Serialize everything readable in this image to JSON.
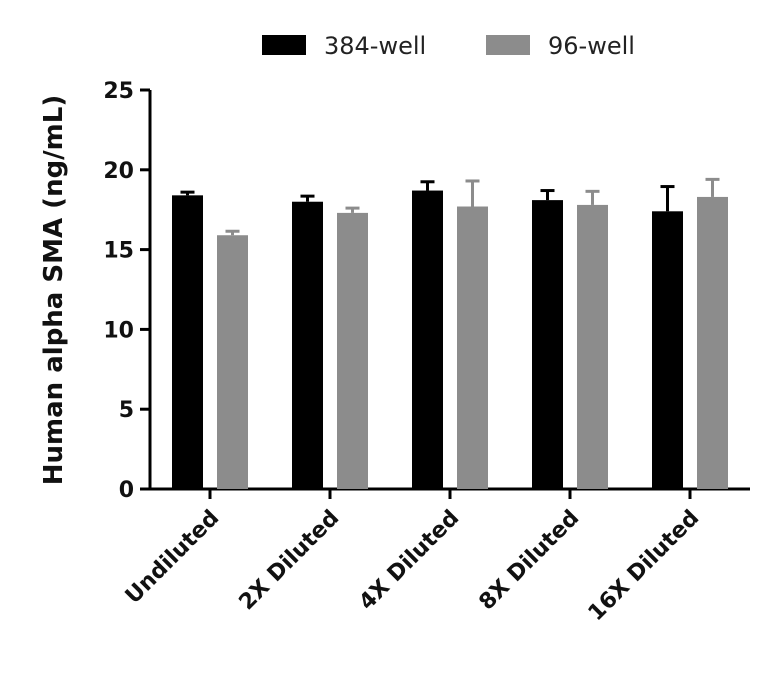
{
  "chart_data": {
    "type": "bar",
    "title": "",
    "xlabel": "",
    "ylabel": "Human alpha SMA (ng/mL)",
    "ylim": [
      0,
      25
    ],
    "yticks": [
      0,
      5,
      10,
      15,
      20,
      25
    ],
    "categories": [
      "Undiluted",
      "2X Diluted",
      "4X Diluted",
      "8X Diluted",
      "16X Diluted"
    ],
    "series": [
      {
        "name": "384-well",
        "color": "#000000",
        "values": [
          18.4,
          18.0,
          18.7,
          18.1,
          17.4
        ],
        "errors": [
          0.2,
          0.35,
          0.55,
          0.6,
          1.55
        ]
      },
      {
        "name": "96-well",
        "color": "#8c8c8c",
        "values": [
          15.9,
          17.3,
          17.7,
          17.8,
          18.3
        ],
        "errors": [
          0.25,
          0.3,
          1.6,
          0.85,
          1.1
        ]
      }
    ],
    "legend_position": "top-center",
    "grid": false
  }
}
